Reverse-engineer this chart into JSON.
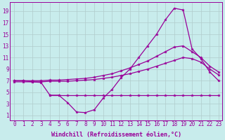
{
  "background_color": "#c8ecec",
  "line_color": "#990099",
  "grid_color": "#b0cccc",
  "xlabel": "Windchill (Refroidissement éolien,°C)",
  "xlim_min": -0.5,
  "xlim_max": 23.4,
  "ylim_min": 0.2,
  "ylim_max": 20.5,
  "xticks": [
    0,
    1,
    2,
    3,
    4,
    5,
    6,
    7,
    8,
    9,
    10,
    11,
    12,
    13,
    14,
    15,
    16,
    17,
    18,
    19,
    20,
    21,
    22,
    23
  ],
  "yticks": [
    1,
    3,
    5,
    7,
    9,
    11,
    13,
    15,
    17,
    19
  ],
  "s1_x": [
    0,
    1,
    2,
    3,
    4,
    5,
    6,
    7,
    8,
    9,
    10,
    11,
    12,
    13,
    14,
    15,
    16,
    17,
    18,
    19,
    20,
    21,
    22,
    23
  ],
  "s1_y": [
    7.0,
    7.0,
    6.8,
    6.7,
    4.5,
    4.5,
    3.2,
    1.6,
    1.5,
    2.0,
    4.0,
    5.5,
    7.5,
    9.0,
    11.0,
    13.0,
    15.0,
    17.5,
    19.5,
    19.2,
    12.5,
    10.8,
    8.5,
    7.0
  ],
  "s2_x": [
    0,
    1,
    2,
    3,
    4,
    5,
    6,
    7,
    8,
    9,
    10,
    11,
    12,
    13,
    14,
    15,
    16,
    17,
    18,
    19,
    20,
    21,
    22,
    23
  ],
  "s2_y": [
    7.0,
    7.0,
    7.0,
    7.0,
    7.1,
    7.1,
    7.2,
    7.3,
    7.4,
    7.6,
    7.9,
    8.2,
    8.7,
    9.2,
    9.8,
    10.4,
    11.2,
    12.0,
    12.8,
    13.0,
    12.0,
    11.0,
    9.5,
    8.5
  ],
  "s3_x": [
    0,
    1,
    2,
    3,
    4,
    5,
    6,
    7,
    8,
    9,
    10,
    11,
    12,
    13,
    14,
    15,
    16,
    17,
    18,
    19,
    20,
    21,
    22,
    23
  ],
  "s3_y": [
    6.8,
    6.8,
    6.8,
    6.8,
    6.9,
    6.9,
    6.9,
    7.0,
    7.1,
    7.2,
    7.4,
    7.6,
    7.9,
    8.2,
    8.6,
    9.0,
    9.5,
    10.0,
    10.5,
    11.0,
    10.8,
    10.2,
    9.0,
    8.0
  ],
  "s4_x": [
    4,
    5,
    6,
    7,
    8,
    9,
    10,
    11,
    12,
    13,
    14,
    15,
    16,
    17,
    18,
    19,
    20,
    21,
    22,
    23
  ],
  "s4_y": [
    4.5,
    4.5,
    4.5,
    4.5,
    4.5,
    4.5,
    4.5,
    4.5,
    4.5,
    4.5,
    4.5,
    4.5,
    4.5,
    4.5,
    4.5,
    4.5,
    4.5,
    4.5,
    4.5,
    4.5
  ],
  "linewidth": 0.9,
  "markersize": 2.8,
  "tick_fontsize": 5.5,
  "xlabel_fontsize": 6.0
}
